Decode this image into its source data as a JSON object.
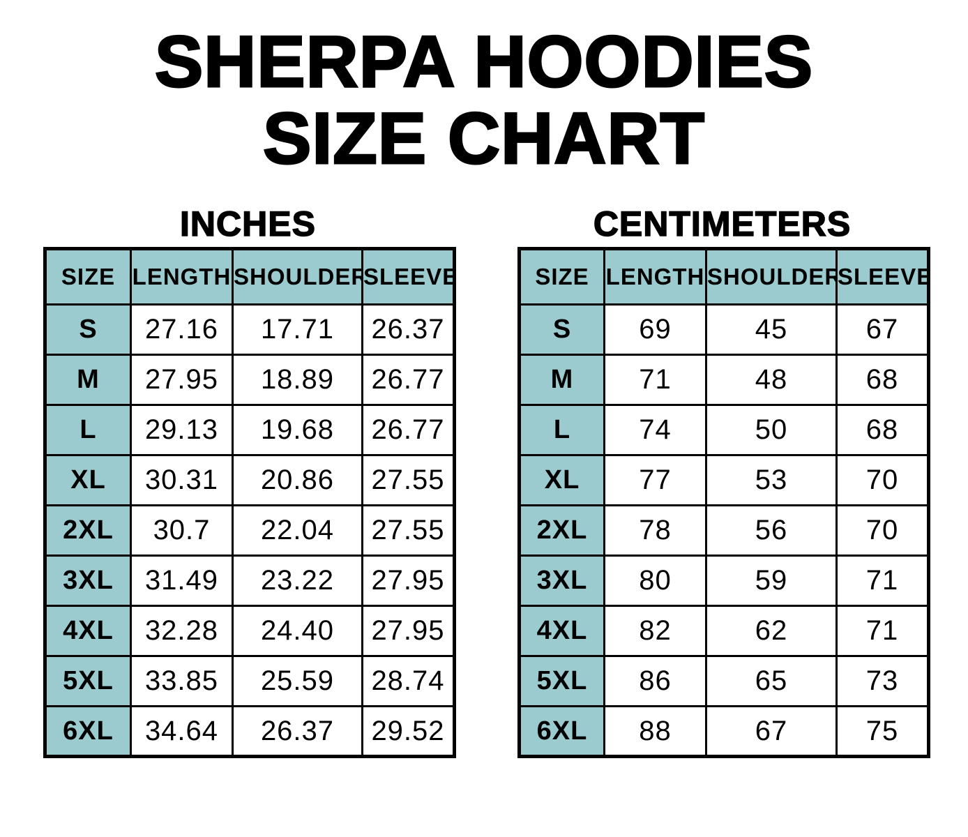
{
  "page": {
    "title_line1": "SHERPA HOODIES",
    "title_line2": "SIZE CHART"
  },
  "colors": {
    "header_fill": "#9BCBCF",
    "border": "#000000",
    "background": "#FFFFFF",
    "text": "#000000"
  },
  "chart_data": [
    {
      "type": "table",
      "title": "INCHES",
      "columns": [
        "SIZE",
        "LENGTH",
        "SHOULDER",
        "SLEEVE"
      ],
      "rows": [
        [
          "S",
          "27.16",
          "17.71",
          "26.37"
        ],
        [
          "M",
          "27.95",
          "18.89",
          "26.77"
        ],
        [
          "L",
          "29.13",
          "19.68",
          "26.77"
        ],
        [
          "XL",
          "30.31",
          "20.86",
          "27.55"
        ],
        [
          "2XL",
          "30.7",
          "22.04",
          "27.55"
        ],
        [
          "3XL",
          "31.49",
          "23.22",
          "27.95"
        ],
        [
          "4XL",
          "32.28",
          "24.40",
          "27.95"
        ],
        [
          "5XL",
          "33.85",
          "25.59",
          "28.74"
        ],
        [
          "6XL",
          "34.64",
          "26.37",
          "29.52"
        ]
      ]
    },
    {
      "type": "table",
      "title": "CENTIMETERS",
      "columns": [
        "SIZE",
        "LENGTH",
        "SHOULDER",
        "SLEEVE"
      ],
      "rows": [
        [
          "S",
          "69",
          "45",
          "67"
        ],
        [
          "M",
          "71",
          "48",
          "68"
        ],
        [
          "L",
          "74",
          "50",
          "68"
        ],
        [
          "XL",
          "77",
          "53",
          "70"
        ],
        [
          "2XL",
          "78",
          "56",
          "70"
        ],
        [
          "3XL",
          "80",
          "59",
          "71"
        ],
        [
          "4XL",
          "82",
          "62",
          "71"
        ],
        [
          "5XL",
          "86",
          "65",
          "73"
        ],
        [
          "6XL",
          "88",
          "67",
          "75"
        ]
      ]
    }
  ]
}
